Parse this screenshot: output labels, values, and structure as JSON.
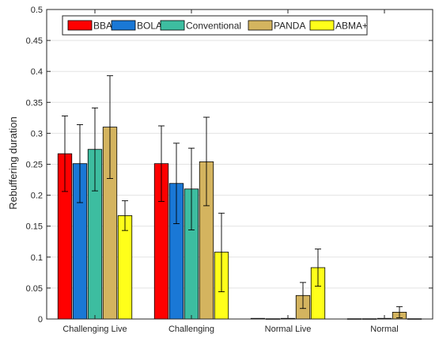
{
  "chart_data": {
    "type": "bar",
    "xlabel": "",
    "ylabel": "Rebuffering duration",
    "ylim": [
      0,
      0.5
    ],
    "yticks": [
      0,
      0.05,
      0.1,
      0.15,
      0.2,
      0.25,
      0.3,
      0.35,
      0.4,
      0.45,
      0.5
    ],
    "ytick_labels": [
      "0",
      "0.05",
      "0.1",
      "0.15",
      "0.2",
      "0.25",
      "0.3",
      "0.35",
      "0.4",
      "0.45",
      "0.5"
    ],
    "grid": true,
    "legend": {
      "placement": "top",
      "orientation": "horizontal"
    },
    "categories": [
      "Challenging Live",
      "Challenging",
      "Normal Live",
      "Normal"
    ],
    "series": [
      {
        "name": "BBA",
        "color": "#ff0000",
        "values": [
          0.267,
          0.251,
          0.001,
          0.0005
        ],
        "err_low": [
          0.206,
          0.19,
          0.0,
          0.0
        ],
        "err_high": [
          0.328,
          0.312,
          0.002,
          0.001
        ]
      },
      {
        "name": "BOLA",
        "color": "#1a78d6",
        "values": [
          0.251,
          0.219,
          0.0005,
          0.0005
        ],
        "err_low": [
          0.188,
          0.154,
          0.0,
          0.0
        ],
        "err_high": [
          0.314,
          0.284,
          0.001,
          0.001
        ]
      },
      {
        "name": "Conventional",
        "color": "#3dbda0",
        "values": [
          0.274,
          0.21,
          0.001,
          0.001
        ],
        "err_low": [
          0.207,
          0.144,
          0.0,
          0.0
        ],
        "err_high": [
          0.341,
          0.276,
          0.003,
          0.003
        ]
      },
      {
        "name": "PANDA",
        "color": "#d4b45f",
        "values": [
          0.31,
          0.254,
          0.038,
          0.011
        ],
        "err_low": [
          0.227,
          0.183,
          0.017,
          0.002
        ],
        "err_high": [
          0.393,
          0.326,
          0.059,
          0.02
        ]
      },
      {
        "name": "ABMA+",
        "color": "#ffff1a",
        "values": [
          0.167,
          0.108,
          0.083,
          0.0005
        ],
        "err_low": [
          0.143,
          0.044,
          0.053,
          0.0
        ],
        "err_high": [
          0.191,
          0.171,
          0.113,
          0.001
        ]
      }
    ]
  }
}
